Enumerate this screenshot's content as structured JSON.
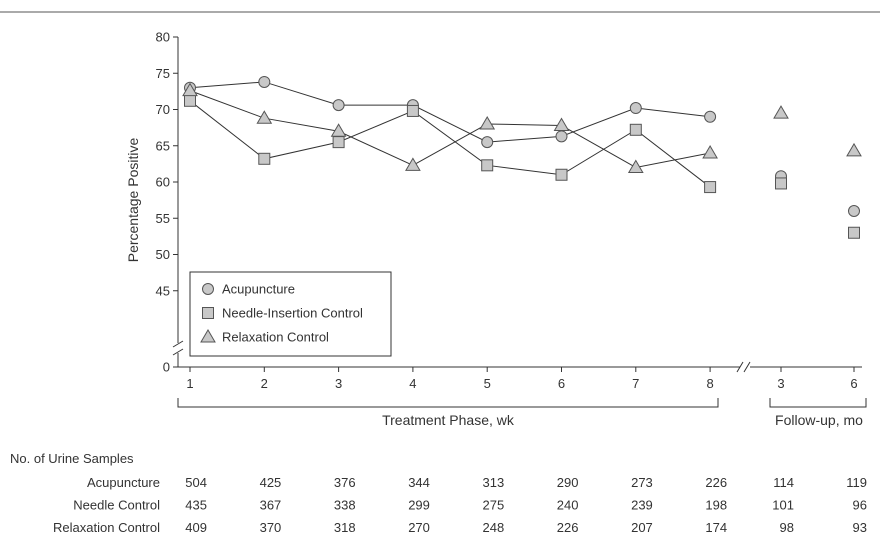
{
  "chart_data": {
    "type": "line",
    "ylabel": "Percentage Positive",
    "yticks": [
      0,
      45,
      50,
      55,
      60,
      65,
      70,
      75,
      80
    ],
    "ylim": [
      40,
      80
    ],
    "axis_break": true,
    "treatment_phase": {
      "label": "Treatment Phase, wk",
      "x": [
        "1",
        "2",
        "3",
        "4",
        "5",
        "6",
        "7",
        "8"
      ]
    },
    "follow_up": {
      "label": "Follow-up, mo",
      "x": [
        "3",
        "6"
      ]
    },
    "legend_position": "bottom-left",
    "series": [
      {
        "name": "Acupuncture",
        "marker": "circle",
        "treatment": [
          73.0,
          73.8,
          70.6,
          70.6,
          65.5,
          66.3,
          70.2,
          69.0
        ],
        "follow_up": [
          60.8,
          56.0
        ]
      },
      {
        "name": "Needle-Insertion Control",
        "marker": "square",
        "treatment": [
          71.2,
          63.2,
          65.5,
          69.8,
          62.3,
          61.0,
          67.2,
          59.3
        ],
        "follow_up": [
          59.8,
          53.0
        ]
      },
      {
        "name": "Relaxation Control",
        "marker": "triangle",
        "treatment": [
          72.6,
          68.8,
          67.0,
          62.3,
          68.0,
          67.8,
          62.0,
          64.0
        ],
        "follow_up": [
          69.5,
          64.3
        ]
      }
    ]
  },
  "samples_table": {
    "title": "No. of Urine Samples",
    "rows": [
      {
        "label": "Acupuncture",
        "values": [
          "504",
          "425",
          "376",
          "344",
          "313",
          "290",
          "273",
          "226",
          "114",
          "119"
        ]
      },
      {
        "label": "Needle Control",
        "values": [
          "435",
          "367",
          "338",
          "299",
          "275",
          "240",
          "239",
          "198",
          "101",
          "96"
        ]
      },
      {
        "label": "Relaxation Control",
        "values": [
          "409",
          "370",
          "318",
          "270",
          "248",
          "226",
          "207",
          "174",
          "98",
          "93"
        ]
      }
    ]
  },
  "colors": {
    "marker_fill": "#c8c8c8",
    "marker_stroke": "#555555",
    "line": "#333333",
    "rule": "#555555"
  }
}
